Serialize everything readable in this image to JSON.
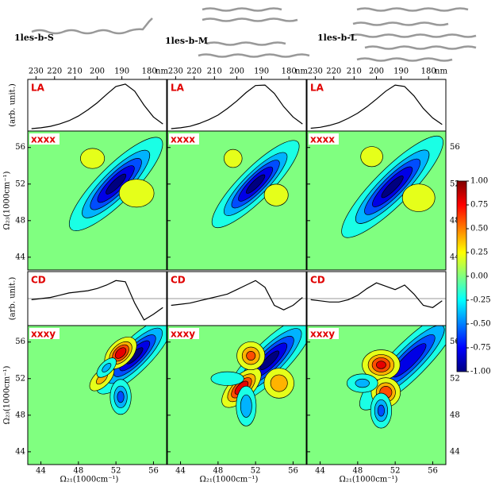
{
  "structures": [
    "1les-b-S",
    "1les-b-M",
    "1les-b-L"
  ],
  "chart_data": {
    "type": "2dir",
    "nm_label": "nm",
    "nm_ticks": [
      230,
      220,
      210,
      200,
      190,
      180
    ],
    "x_label": "Ω₂₁(1000cm⁻¹)",
    "y_label": "Ω₂₃(1000cm⁻¹)",
    "arb_label": "(arb. unit.)",
    "xlim": [
      42.6,
      57.4
    ],
    "xticks": [
      44,
      48,
      52,
      56
    ],
    "ylim": [
      42.6,
      57.8
    ],
    "yticks": [
      44,
      48,
      52,
      56
    ],
    "x": [
      43,
      44,
      45,
      46,
      47,
      48,
      49,
      50,
      51,
      52,
      53,
      54,
      55,
      56,
      57
    ],
    "rows": [
      {
        "label": "LA",
        "type": "line",
        "ylim": [
          0,
          1.1
        ],
        "series": [
          [
            0.05,
            0.07,
            0.1,
            0.15,
            0.22,
            0.32,
            0.45,
            0.6,
            0.78,
            0.95,
            1.0,
            0.85,
            0.55,
            0.3,
            0.15
          ],
          [
            0.05,
            0.07,
            0.1,
            0.16,
            0.24,
            0.34,
            0.48,
            0.64,
            0.82,
            0.97,
            0.98,
            0.8,
            0.52,
            0.3,
            0.15
          ],
          [
            0.06,
            0.08,
            0.12,
            0.18,
            0.27,
            0.38,
            0.52,
            0.68,
            0.85,
            0.98,
            0.95,
            0.75,
            0.48,
            0.28,
            0.14
          ]
        ]
      },
      {
        "label": "xxxx",
        "type": "contour",
        "panels": [
          [
            {
              "x": 52,
              "y": 52,
              "sx": 3.2,
              "sy": 0.9,
              "angle": 45,
              "amp": -1
            },
            {
              "x": 49.5,
              "y": 54.8,
              "sx": 1.2,
              "sy": 1.0,
              "angle": 0,
              "amp": 0.18
            },
            {
              "x": 54.2,
              "y": 51,
              "sx": 1.5,
              "sy": 1.2,
              "angle": 0,
              "amp": 0.22
            }
          ],
          [
            {
              "x": 52,
              "y": 52,
              "sx": 3.0,
              "sy": 0.8,
              "angle": 45,
              "amp": -1
            },
            {
              "x": 49.6,
              "y": 54.8,
              "sx": 0.9,
              "sy": 0.9,
              "angle": 0,
              "amp": 0.18
            },
            {
              "x": 54.2,
              "y": 50.8,
              "sx": 1.1,
              "sy": 1.0,
              "angle": 0,
              "amp": 0.2
            }
          ],
          [
            {
              "x": 51.7,
              "y": 51.7,
              "sx": 3.5,
              "sy": 0.9,
              "angle": 45,
              "amp": -1
            },
            {
              "x": 49.5,
              "y": 55,
              "sx": 1.1,
              "sy": 1.0,
              "angle": 0,
              "amp": 0.18
            },
            {
              "x": 54.5,
              "y": 50.5,
              "sx": 1.3,
              "sy": 1.1,
              "angle": 0,
              "amp": 0.25
            }
          ]
        ]
      },
      {
        "label": "CD",
        "type": "line",
        "ylim": [
          -1.2,
          1.2
        ],
        "zero": true,
        "series": [
          [
            -0.05,
            0,
            0.05,
            0.15,
            0.25,
            0.3,
            0.35,
            0.45,
            0.6,
            0.8,
            0.75,
            -0.2,
            -0.95,
            -0.7,
            -0.4
          ],
          [
            -0.3,
            -0.25,
            -0.2,
            -0.1,
            0,
            0.1,
            0.2,
            0.4,
            0.6,
            0.8,
            0.5,
            -0.3,
            -0.5,
            -0.3,
            0.05
          ],
          [
            -0.05,
            -0.1,
            -0.15,
            -0.15,
            -0.05,
            0.15,
            0.45,
            0.7,
            0.55,
            0.4,
            0.6,
            0.2,
            -0.3,
            -0.4,
            -0.1
          ]
        ]
      },
      {
        "label": "xxxy",
        "type": "contour",
        "panels": [
          [
            {
              "x": 54,
              "y": 54.5,
              "sx": 2.6,
              "sy": 0.8,
              "angle": 45,
              "amp": -1
            },
            {
              "x": 52.5,
              "y": 54.8,
              "sx": 1.0,
              "sy": 0.6,
              "angle": 45,
              "amp": 0.9
            },
            {
              "x": 52.5,
              "y": 50,
              "sx": 0.6,
              "sy": 1.0,
              "angle": 0,
              "amp": -0.6
            },
            {
              "x": 50.5,
              "y": 52,
              "sx": 1.0,
              "sy": 0.5,
              "angle": 45,
              "amp": 0.4
            },
            {
              "x": 51,
              "y": 53.2,
              "sx": 0.8,
              "sy": 0.4,
              "angle": 45,
              "amp": -0.4
            }
          ],
          [
            {
              "x": 53.5,
              "y": 54,
              "sx": 3.0,
              "sy": 0.9,
              "angle": 45,
              "amp": -1
            },
            {
              "x": 50.5,
              "y": 51,
              "sx": 1.3,
              "sy": 0.6,
              "angle": 45,
              "amp": 0.9
            },
            {
              "x": 51.5,
              "y": 54.5,
              "sx": 0.8,
              "sy": 0.8,
              "angle": 0,
              "amp": 0.6
            },
            {
              "x": 54.5,
              "y": 51.5,
              "sx": 0.9,
              "sy": 0.9,
              "angle": 0,
              "amp": 0.5
            },
            {
              "x": 51,
              "y": 49,
              "sx": 0.6,
              "sy": 1.2,
              "angle": 0,
              "amp": -0.5
            },
            {
              "x": 49,
              "y": 52,
              "sx": 1.2,
              "sy": 0.5,
              "angle": 0,
              "amp": -0.3
            }
          ],
          [
            {
              "x": 53.5,
              "y": 54,
              "sx": 3.5,
              "sy": 0.9,
              "angle": 45,
              "amp": -0.9
            },
            {
              "x": 50.5,
              "y": 53.5,
              "sx": 1.0,
              "sy": 0.8,
              "angle": 0,
              "amp": 0.8
            },
            {
              "x": 51,
              "y": 50.5,
              "sx": 0.8,
              "sy": 0.8,
              "angle": 0,
              "amp": 0.7
            },
            {
              "x": 50.5,
              "y": 48.5,
              "sx": 0.6,
              "sy": 1.0,
              "angle": 0,
              "amp": -0.6
            },
            {
              "x": 48.5,
              "y": 51.5,
              "sx": 1.0,
              "sy": 0.6,
              "angle": 0,
              "amp": -0.4
            }
          ]
        ]
      }
    ],
    "colorbar": {
      "zlim": [
        -1,
        1
      ],
      "ticks": [
        {
          "value": 1,
          "label": "1.00"
        },
        {
          "value": 0.75,
          "label": "0.75"
        },
        {
          "value": 0.5,
          "label": "0.50"
        },
        {
          "value": 0.25,
          "label": "0.25"
        },
        {
          "value": 0,
          "label": "0.00"
        },
        {
          "value": -0.25,
          "label": "-0.25"
        },
        {
          "value": -0.5,
          "label": "-0.50"
        },
        {
          "value": -0.75,
          "label": "-0.75"
        },
        {
          "value": -1,
          "label": "-1.00"
        }
      ]
    }
  }
}
